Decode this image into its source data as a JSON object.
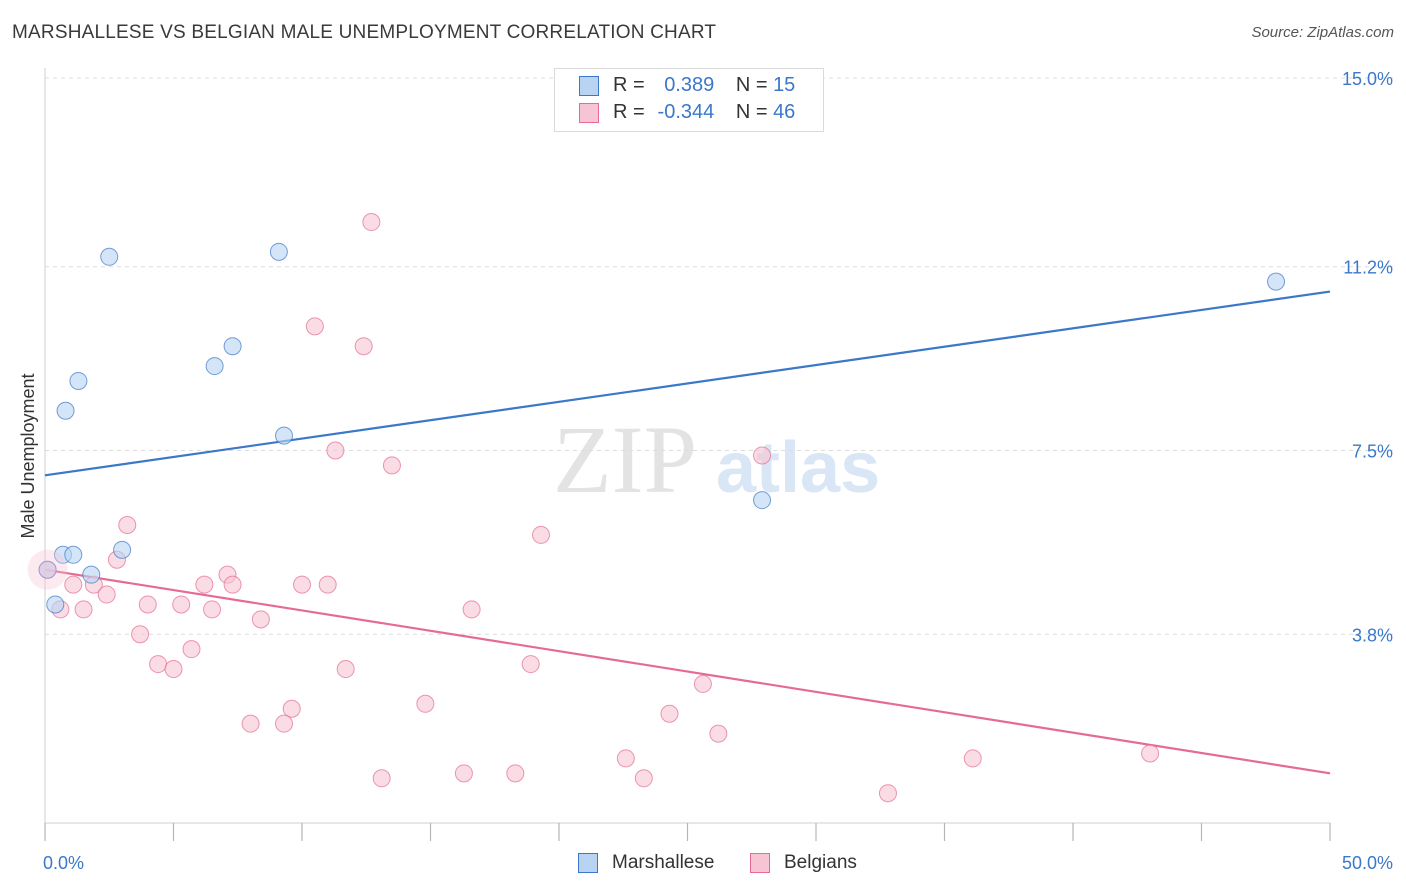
{
  "header": {
    "title": "MARSHALLESE VS BELGIAN MALE UNEMPLOYMENT CORRELATION CHART",
    "source": "Source: ZipAtlas.com"
  },
  "watermark": {
    "zip": "ZIP",
    "atlas": "atlas"
  },
  "legend": {
    "r_label": "R =",
    "n_label": "N =",
    "rows": [
      {
        "r": "0.389",
        "n": "15"
      },
      {
        "r": "-0.344",
        "n": "46"
      }
    ]
  },
  "chart_data": {
    "type": "scatter",
    "ylabel": "Male Unemployment",
    "xlim": [
      0,
      50
    ],
    "ylim": [
      0,
      15
    ],
    "x_tick_labels": [
      "0.0%",
      "50.0%"
    ],
    "y_ticks": [
      3.8,
      7.5,
      11.2,
      15.0
    ],
    "y_tick_labels": [
      "3.8%",
      "7.5%",
      "11.2%",
      "15.0%"
    ],
    "grid": "horizontal dashed",
    "legend_placement": "top-center and bottom-center",
    "colors": {
      "Marshallese": "#3b78c9",
      "Marshallese_fill": "#b9d3f3",
      "Belgians": "#e56b96",
      "Belgians_fill": "#f7c4d4",
      "tick_label": "#3b78c9"
    },
    "series": [
      {
        "name": "Marshallese",
        "points": [
          [
            2.5,
            11.4
          ],
          [
            9.1,
            11.5
          ],
          [
            6.6,
            9.2
          ],
          [
            7.3,
            9.6
          ],
          [
            1.3,
            8.9
          ],
          [
            0.8,
            8.3
          ],
          [
            9.3,
            7.8
          ],
          [
            27.9,
            6.5
          ],
          [
            0.1,
            5.1
          ],
          [
            0.7,
            5.4
          ],
          [
            1.1,
            5.4
          ],
          [
            3.0,
            5.5
          ],
          [
            1.8,
            5.0
          ],
          [
            0.4,
            4.4
          ],
          [
            47.9,
            10.9
          ]
        ],
        "trend": [
          [
            0,
            7.0
          ],
          [
            50,
            10.7
          ]
        ]
      },
      {
        "name": "Belgians",
        "points": [
          [
            12.7,
            12.1
          ],
          [
            10.5,
            10.0
          ],
          [
            12.4,
            9.6
          ],
          [
            11.3,
            7.5
          ],
          [
            13.5,
            7.2
          ],
          [
            27.9,
            7.4
          ],
          [
            3.2,
            6.0
          ],
          [
            19.3,
            5.8
          ],
          [
            2.8,
            5.3
          ],
          [
            7.1,
            5.0
          ],
          [
            0.1,
            5.1
          ],
          [
            1.1,
            4.8
          ],
          [
            1.9,
            4.8
          ],
          [
            6.2,
            4.8
          ],
          [
            7.3,
            4.8
          ],
          [
            10.0,
            4.8
          ],
          [
            11.0,
            4.8
          ],
          [
            2.4,
            4.6
          ],
          [
            4.0,
            4.4
          ],
          [
            5.3,
            4.4
          ],
          [
            6.5,
            4.3
          ],
          [
            0.6,
            4.3
          ],
          [
            1.5,
            4.3
          ],
          [
            16.6,
            4.3
          ],
          [
            8.4,
            4.1
          ],
          [
            3.7,
            3.8
          ],
          [
            5.7,
            3.5
          ],
          [
            4.4,
            3.2
          ],
          [
            5.0,
            3.1
          ],
          [
            11.7,
            3.1
          ],
          [
            18.9,
            3.2
          ],
          [
            25.6,
            2.8
          ],
          [
            14.8,
            2.4
          ],
          [
            9.6,
            2.3
          ],
          [
            24.3,
            2.2
          ],
          [
            8.0,
            2.0
          ],
          [
            9.3,
            2.0
          ],
          [
            26.2,
            1.8
          ],
          [
            22.6,
            1.3
          ],
          [
            36.1,
            1.3
          ],
          [
            43.0,
            1.4
          ],
          [
            13.1,
            0.9
          ],
          [
            16.3,
            1.0
          ],
          [
            18.3,
            1.0
          ],
          [
            23.3,
            0.9
          ],
          [
            32.8,
            0.6
          ]
        ],
        "trend": [
          [
            0,
            5.1
          ],
          [
            50,
            1.0
          ]
        ]
      }
    ]
  }
}
